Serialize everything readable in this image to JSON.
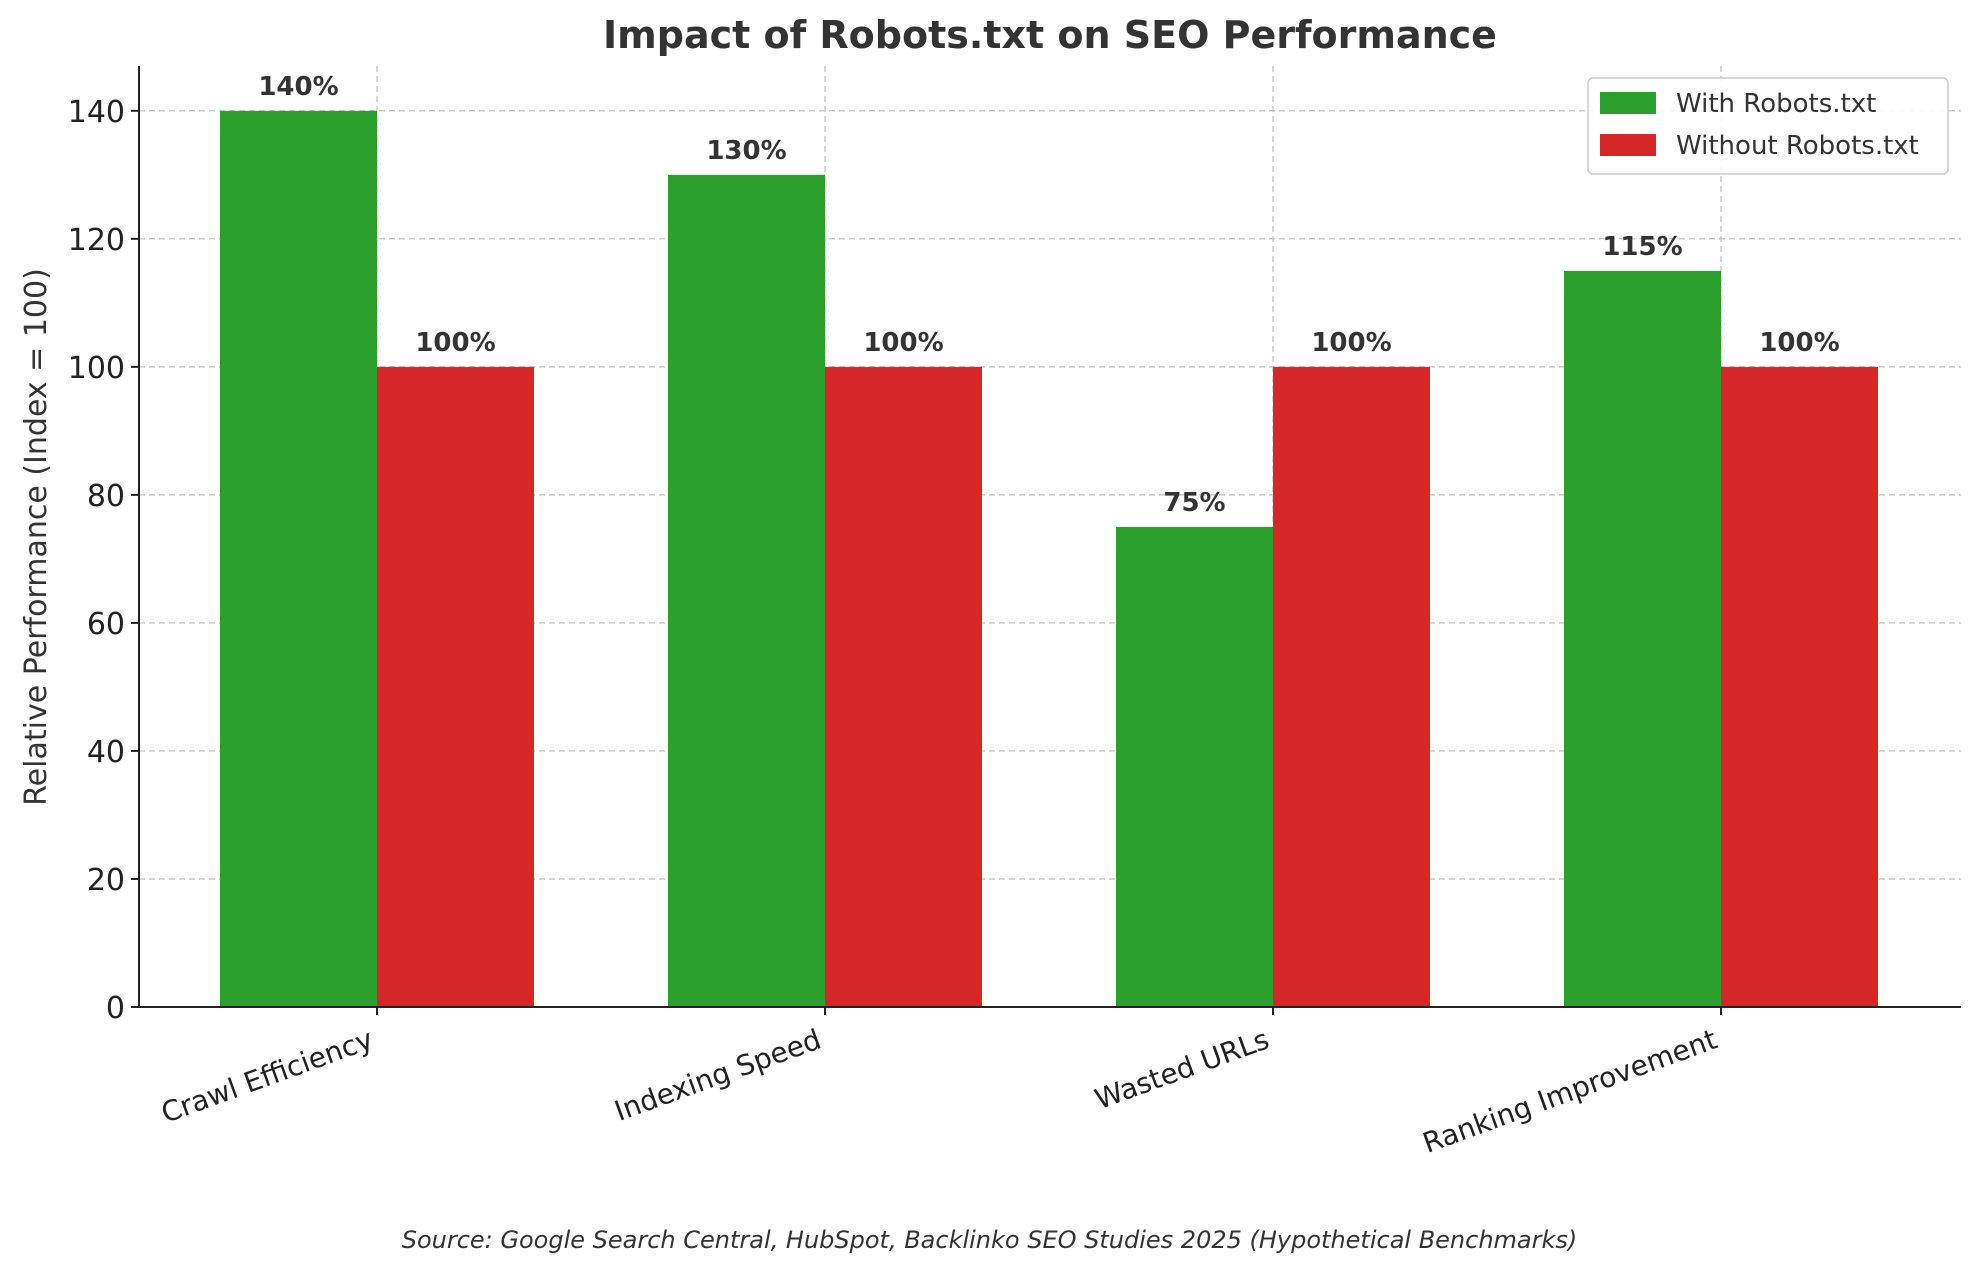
{
  "chart_data": {
    "type": "bar",
    "title": "Impact of Robots.txt on SEO Performance",
    "xlabel": "",
    "ylabel": "Relative Performance (Index = 100)",
    "categories": [
      "Crawl Efficiency",
      "Indexing Speed",
      "Wasted URLs",
      "Ranking Improvement"
    ],
    "series": [
      {
        "name": "With Robots.txt",
        "values": [
          140,
          130,
          75,
          115
        ],
        "labels": [
          "140%",
          "130%",
          "75%",
          "115%"
        ],
        "color": "#2ca02c"
      },
      {
        "name": "Without Robots.txt",
        "values": [
          100,
          100,
          100,
          100
        ],
        "labels": [
          "100%",
          "100%",
          "100%",
          "100%"
        ],
        "color": "#d62728"
      }
    ],
    "ylim": [
      0,
      147
    ],
    "yticks": [
      0,
      20,
      40,
      60,
      80,
      100,
      120,
      140
    ],
    "grid": true,
    "legend_position": "top-right",
    "source": "Source: Google Search Central, HubSpot, Backlinko SEO Studies 2025 (Hypothetical Benchmarks)"
  }
}
